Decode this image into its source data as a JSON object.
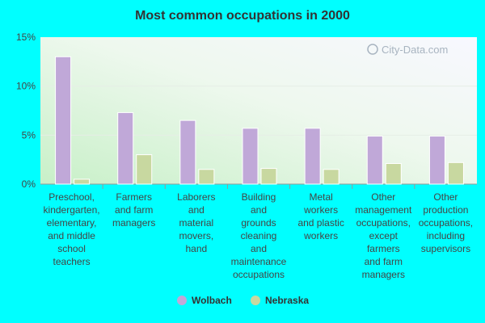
{
  "chart_data": {
    "type": "bar",
    "title": "Most common occupations in 2000",
    "xlabel": "",
    "ylabel": "",
    "ylim": [
      0,
      15
    ],
    "yticks": [
      0,
      5,
      10,
      15
    ],
    "ytick_labels": [
      "0%",
      "5%",
      "10%",
      "15%"
    ],
    "grid": true,
    "legend_position": "bottom",
    "categories": [
      "Preschool, kindergarten, elementary, and middle school teachers",
      "Farmers and farm managers",
      "Laborers and material movers, hand",
      "Building and grounds cleaning and maintenance occupations",
      "Metal workers and plastic workers",
      "Other management occupations, except farmers and farm managers",
      "Other production occupations, including supervisors"
    ],
    "category_lines": [
      [
        "Preschool,",
        "kindergarten,",
        "elementary,",
        "and middle",
        "school",
        "teachers"
      ],
      [
        "Farmers",
        "and farm",
        "managers"
      ],
      [
        "Laborers",
        "and",
        "material",
        "movers,",
        "hand"
      ],
      [
        "Building",
        "and",
        "grounds",
        "cleaning",
        "and",
        "maintenance",
        "occupations"
      ],
      [
        "Metal",
        "workers",
        "and plastic",
        "workers"
      ],
      [
        "Other",
        "management",
        "occupations,",
        "except",
        "farmers",
        "and farm",
        "managers"
      ],
      [
        "Other",
        "production",
        "occupations,",
        "including",
        "supervisors"
      ]
    ],
    "series": [
      {
        "name": "Wolbach",
        "color": "#c0a8d8",
        "values": [
          13.0,
          7.3,
          6.5,
          5.7,
          5.7,
          4.9,
          4.9
        ]
      },
      {
        "name": "Nebraska",
        "color": "#c8d8a0",
        "values": [
          0.5,
          3.0,
          1.5,
          1.6,
          1.5,
          2.1,
          2.2
        ]
      }
    ]
  },
  "watermark": "City-Data.com"
}
